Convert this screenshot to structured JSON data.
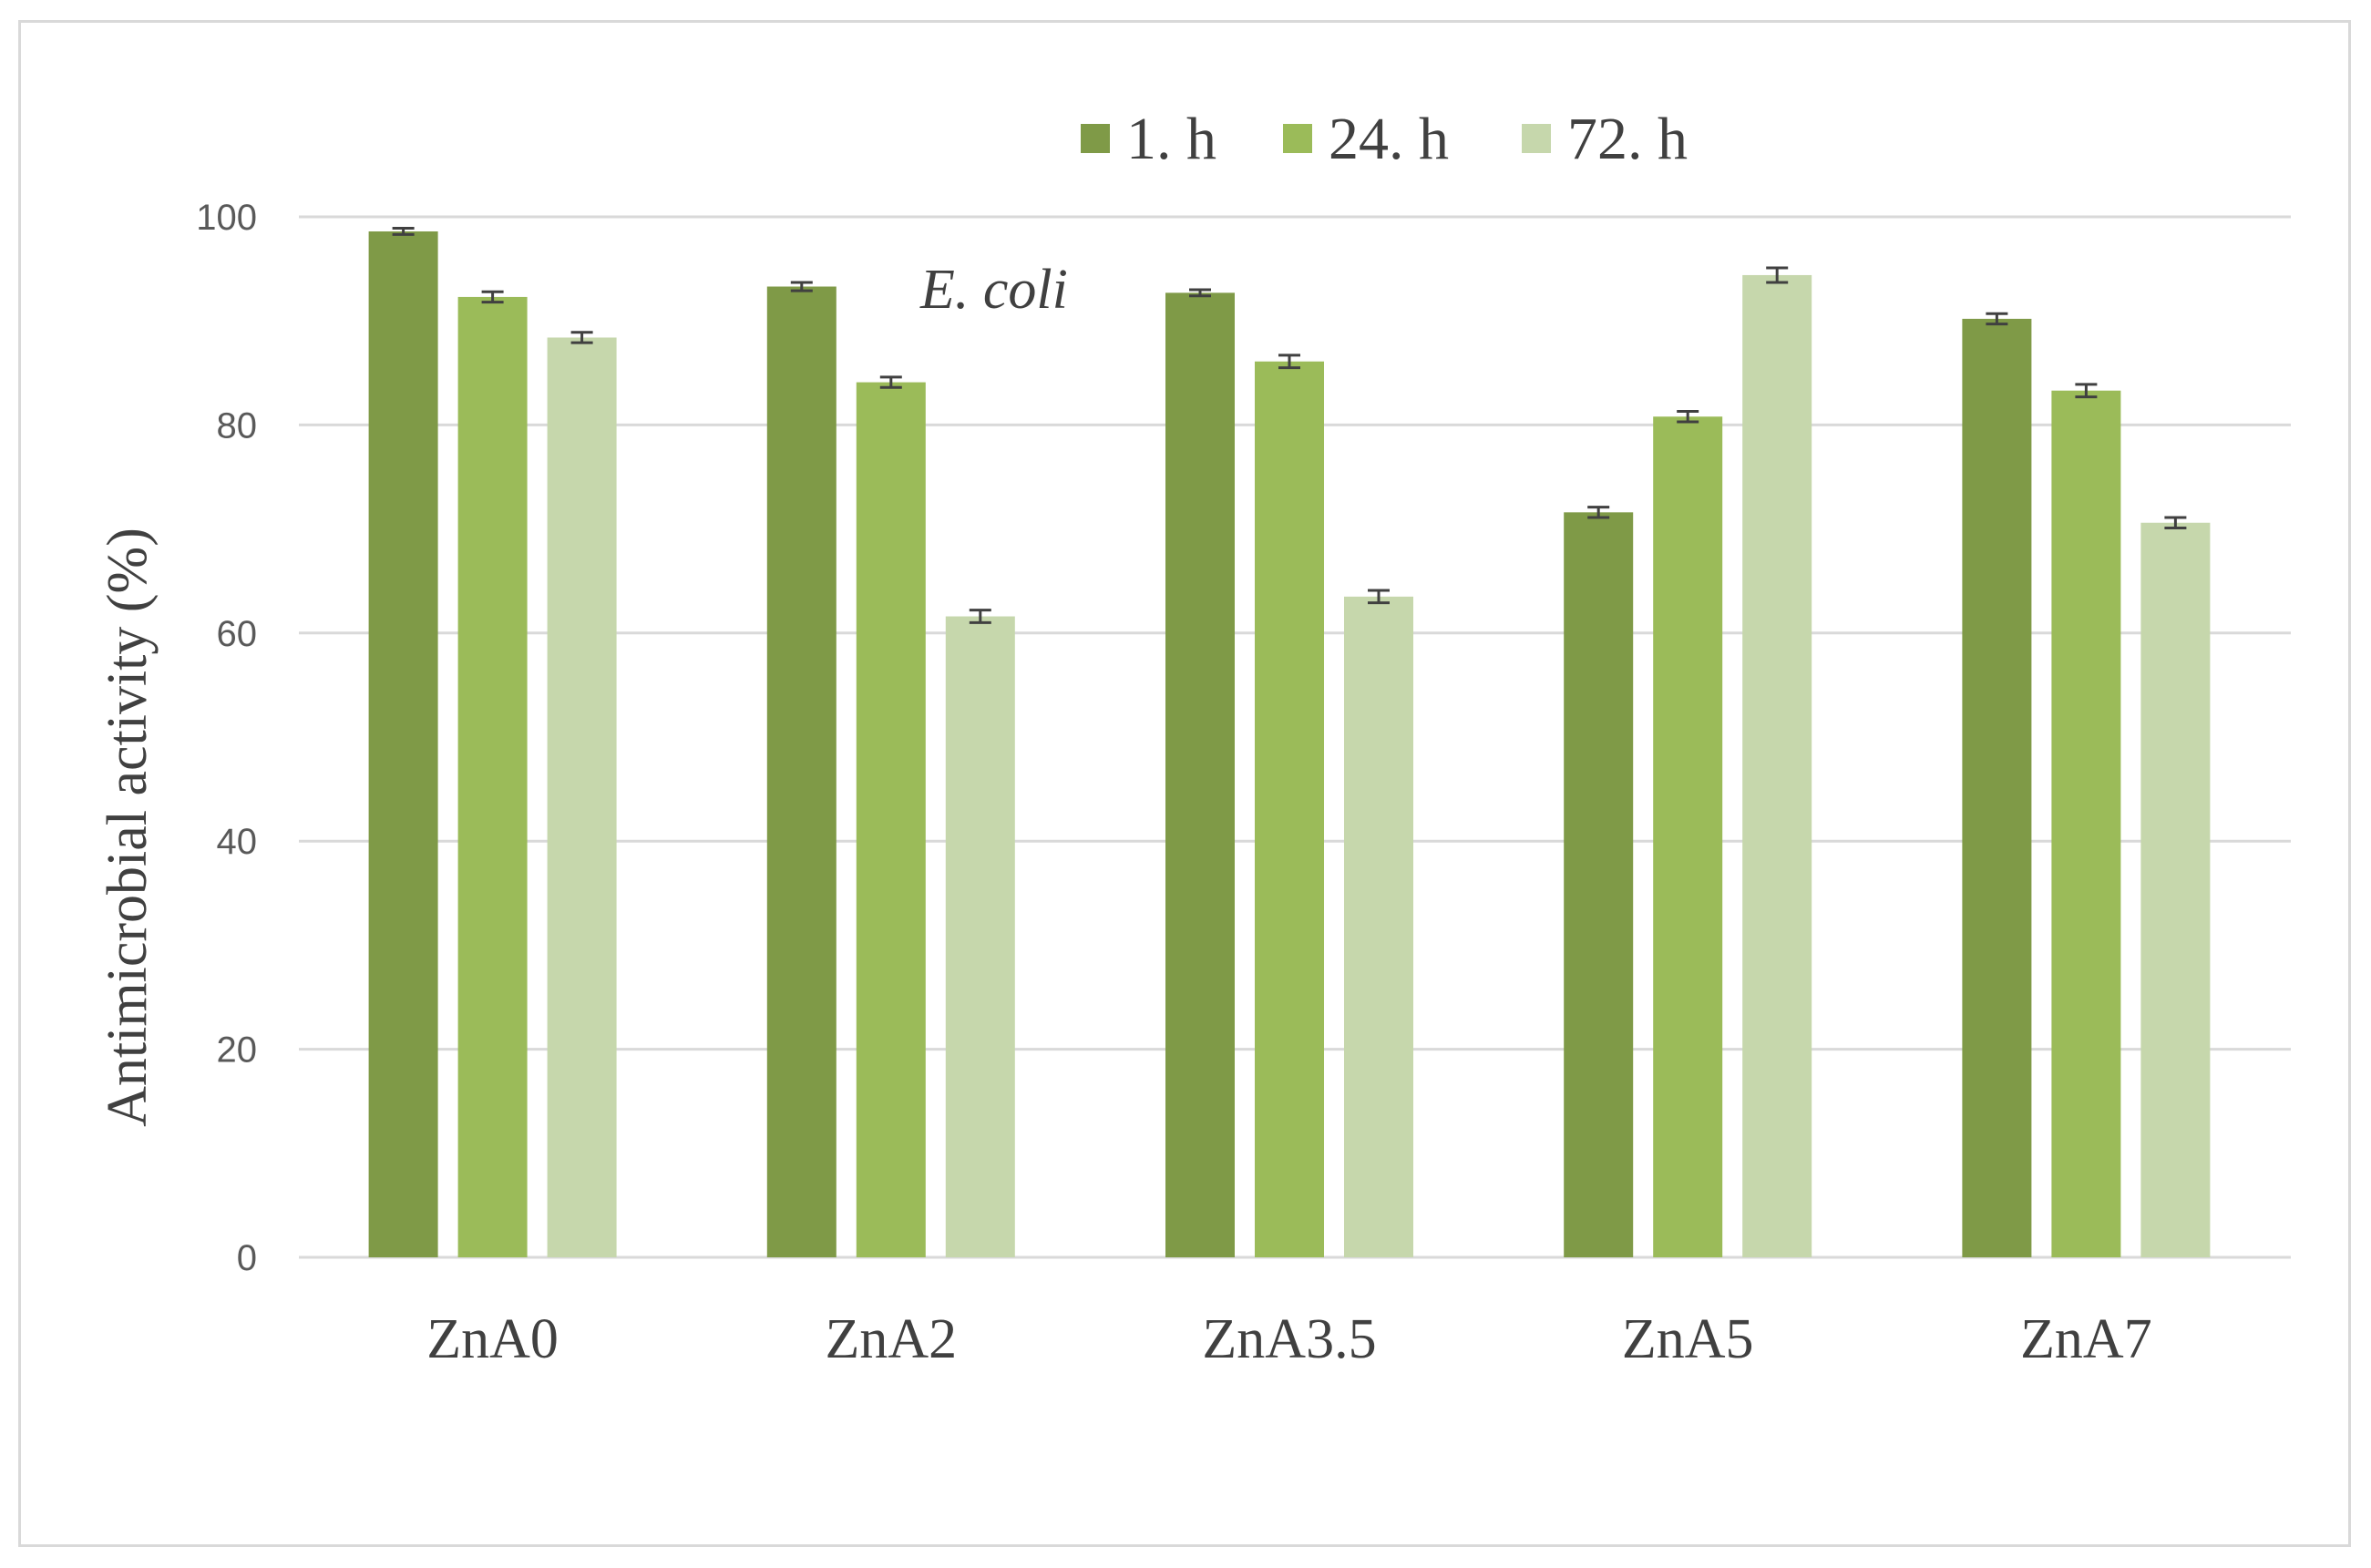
{
  "chart_data": {
    "type": "bar",
    "title": "",
    "xlabel": "",
    "ylabel": "Antimicrobial  activity (%)",
    "categories": [
      "ZnA0",
      "ZnA2",
      "ZnA3.5",
      "ZnA5",
      "ZnA7"
    ],
    "series": [
      {
        "name": "1. h",
        "color": "#7f9a47",
        "values": [
          98.6,
          93.3,
          92.7,
          71.6,
          90.2
        ],
        "errors": [
          0.3,
          0.4,
          0.3,
          0.5,
          0.5
        ]
      },
      {
        "name": "24. h",
        "color": "#9bbb59",
        "values": [
          92.3,
          84.1,
          86.1,
          80.8,
          83.3
        ],
        "errors": [
          0.5,
          0.5,
          0.6,
          0.5,
          0.6
        ]
      },
      {
        "name": "72. h",
        "color": "#c6d7ac",
        "values": [
          88.4,
          61.6,
          63.5,
          94.4,
          70.6
        ],
        "errors": [
          0.5,
          0.6,
          0.6,
          0.7,
          0.5
        ]
      }
    ],
    "ylim": [
      0,
      100
    ],
    "yticks": [
      0,
      20,
      40,
      60,
      80,
      100
    ],
    "grid": true,
    "legend_position": "top-center",
    "annotation": "E. coli",
    "colors": {
      "gridline": "#d9d9d9",
      "error_bar": "#404040",
      "frame": "#d9d9d9"
    }
  }
}
